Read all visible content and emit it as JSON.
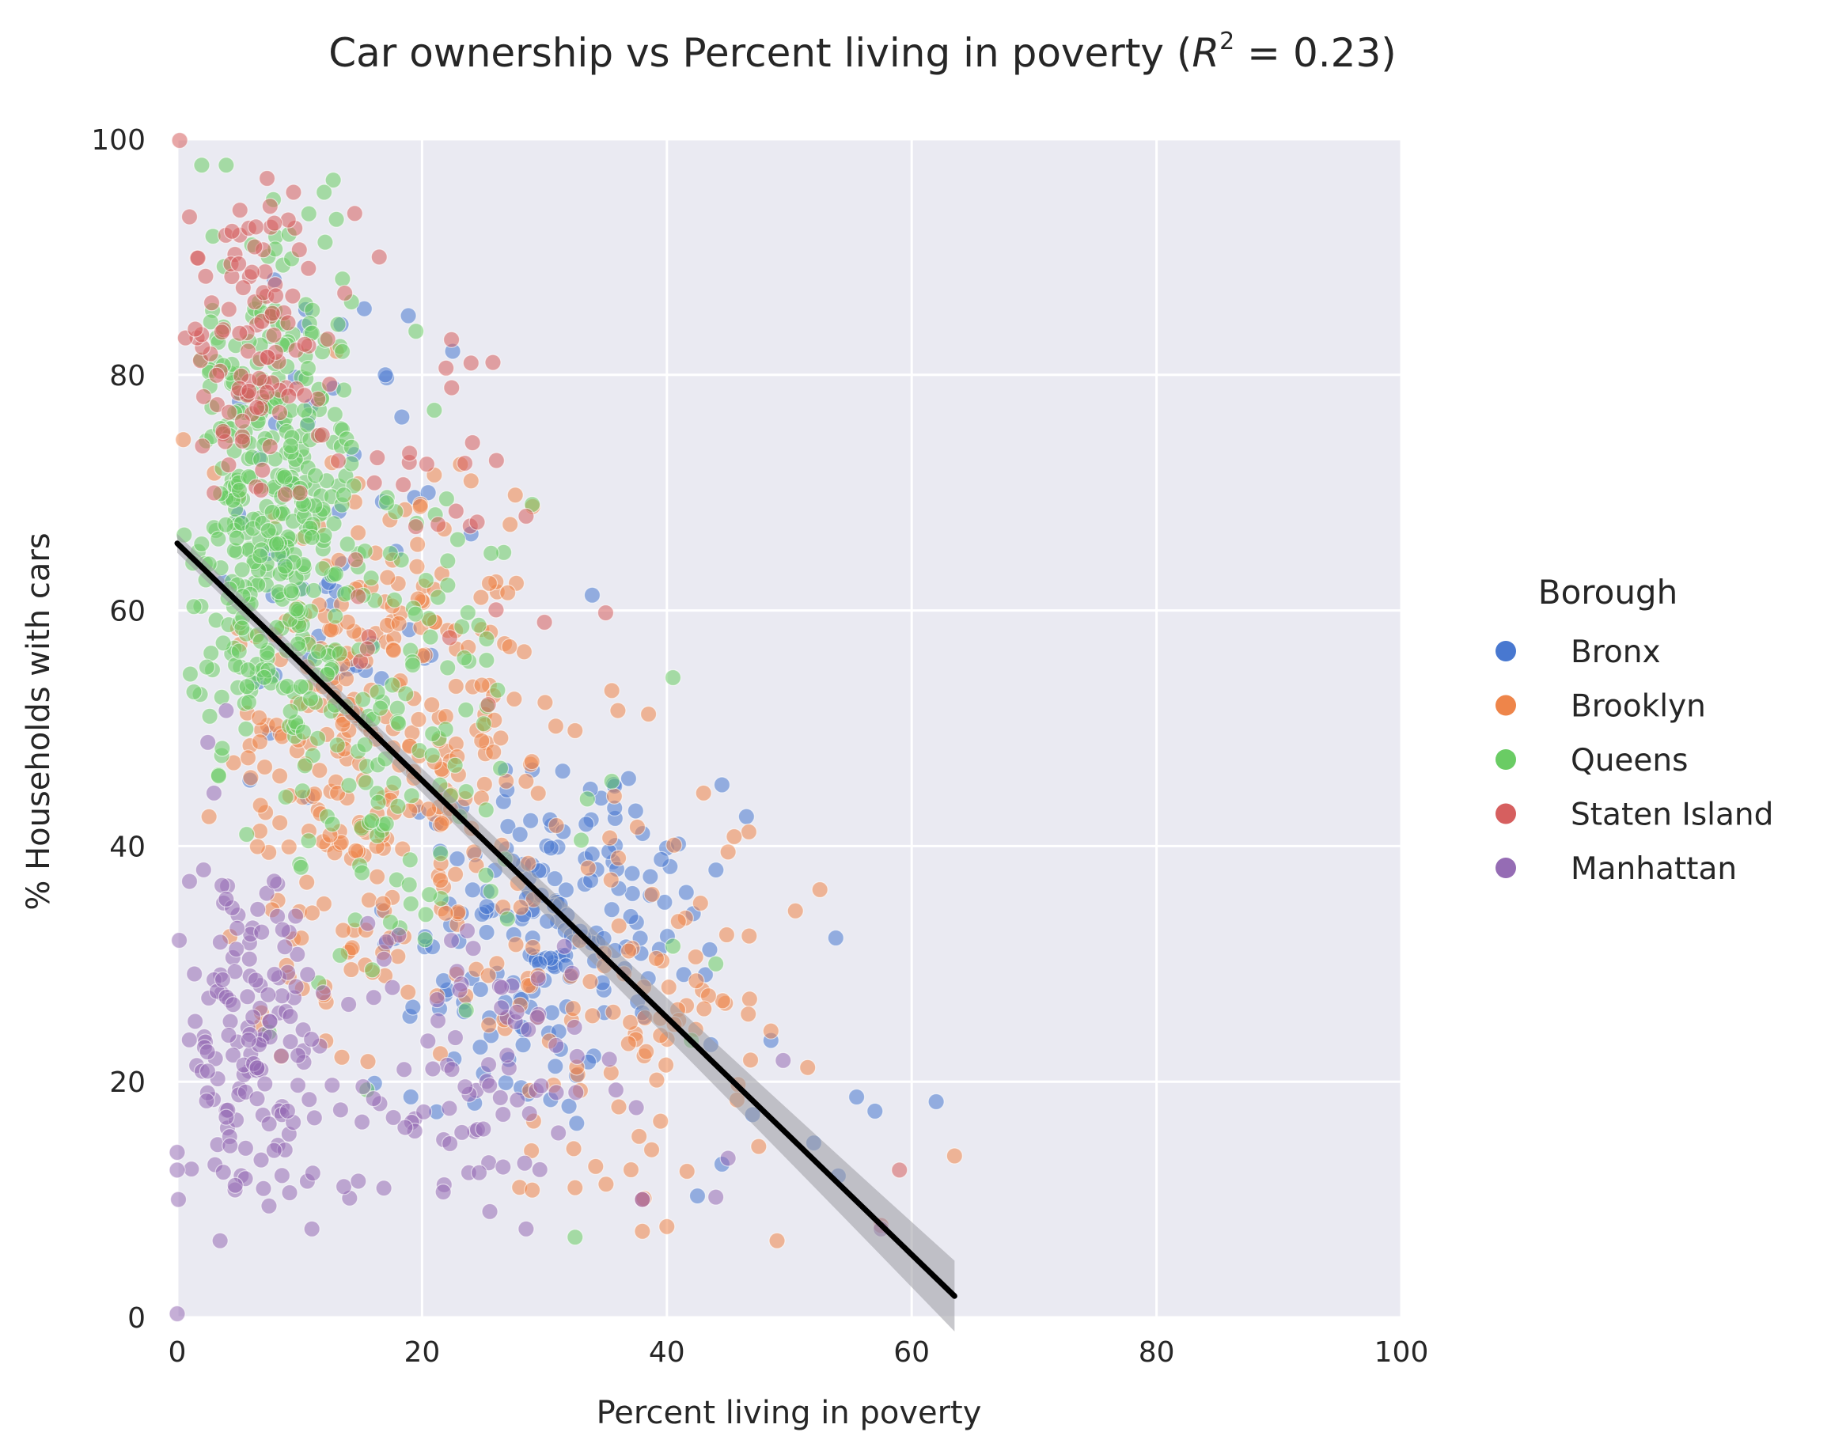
{
  "chart_data": {
    "type": "scatter",
    "title_main": "Car ownership vs Percent living in poverty (",
    "title_r": "R",
    "title_sup": "2",
    "title_rest": " = 0.23)",
    "xlabel": "Percent living in poverty",
    "ylabel": "% Households with cars",
    "xlim": [
      0,
      100
    ],
    "ylim": [
      0,
      100
    ],
    "xticks": [
      "0",
      "20",
      "40",
      "60",
      "80",
      "100"
    ],
    "yticks": [
      "0",
      "20",
      "40",
      "60",
      "80",
      "100"
    ],
    "grid": true,
    "background": "#eaeaf2",
    "legend": {
      "title": "Borough",
      "placement": "right",
      "items": [
        {
          "label": "Bronx",
          "color": "#4878d0"
        },
        {
          "label": "Brooklyn",
          "color": "#ee854a"
        },
        {
          "label": "Queens",
          "color": "#6acc64"
        },
        {
          "label": "Staten Island",
          "color": "#d65f5f"
        },
        {
          "label": "Manhattan",
          "color": "#956cb4"
        }
      ]
    },
    "regression": {
      "x_start": 0,
      "y_start": 65.7,
      "x_end": 63.5,
      "y_end": 1.8,
      "ci_halfwidth_start": 0.8,
      "ci_halfwidth_end": 3.0,
      "color": "#000000",
      "ci_color": "#9a9aa2"
    },
    "series": [
      {
        "name": "Bronx",
        "color": "#4878d0",
        "clusters": [
          {
            "n": 190,
            "x": [
              15,
              45
            ],
            "y": [
              15,
              50
            ]
          },
          {
            "n": 50,
            "x": [
              3,
              22
            ],
            "y": [
              40,
              90
            ]
          }
        ],
        "points": [
          [
            62.0,
            18.3
          ],
          [
            57.0,
            17.5
          ],
          [
            55.5,
            18.7
          ],
          [
            53.8,
            32.2
          ],
          [
            52.0,
            14.8
          ],
          [
            54.0,
            12.0
          ],
          [
            46.5,
            42.5
          ],
          [
            44.5,
            45.2
          ],
          [
            44.5,
            13.0
          ],
          [
            42.5,
            10.3
          ],
          [
            33.9,
            61.3
          ],
          [
            22.5,
            82.0
          ],
          [
            24.0,
            66.5
          ],
          [
            20.5,
            70.0
          ],
          [
            17.0,
            80.0
          ],
          [
            47.0,
            17.2
          ],
          [
            43.5,
            31.2
          ],
          [
            48.5,
            23.5
          ]
        ]
      },
      {
        "name": "Brooklyn",
        "color": "#ee854a",
        "clusters": [
          {
            "n": 320,
            "x": [
              2,
              32
            ],
            "y": [
              20,
              75
            ]
          },
          {
            "n": 90,
            "x": [
              25,
              50
            ],
            "y": [
              8,
              45
            ]
          }
        ],
        "points": [
          [
            63.5,
            13.7
          ],
          [
            52.5,
            36.3
          ],
          [
            50.5,
            34.5
          ],
          [
            51.5,
            21.2
          ],
          [
            49.0,
            6.5
          ],
          [
            48.5,
            24.3
          ],
          [
            47.5,
            14.5
          ],
          [
            45.0,
            39.5
          ],
          [
            45.5,
            40.8
          ],
          [
            43.0,
            44.5
          ],
          [
            40.0,
            7.7
          ],
          [
            38.0,
            7.3
          ],
          [
            38.5,
            51.2
          ],
          [
            35.5,
            53.2
          ],
          [
            36.0,
            51.5
          ],
          [
            32.5,
            49.8
          ],
          [
            32.5,
            11.0
          ],
          [
            29.0,
            10.8
          ],
          [
            27.0,
            61.5
          ],
          [
            25.5,
            62.3
          ],
          [
            0.5,
            74.5
          ],
          [
            24.0,
            71.0
          ],
          [
            13.0,
            82.0
          ],
          [
            21.0,
            71.5
          ]
        ]
      },
      {
        "name": "Queens",
        "color": "#6acc64",
        "clusters": [
          {
            "n": 380,
            "x": [
              0,
              16
            ],
            "y": [
              40,
              97
            ]
          },
          {
            "n": 120,
            "x": [
              8,
              28
            ],
            "y": [
              25,
              75
            ]
          }
        ],
        "points": [
          [
            40.5,
            54.3
          ],
          [
            32.5,
            6.8
          ],
          [
            35.5,
            45.5
          ],
          [
            33.5,
            44.0
          ],
          [
            33.0,
            40.5
          ],
          [
            29.0,
            69.0
          ],
          [
            19.5,
            83.7
          ],
          [
            21.0,
            77.0
          ],
          [
            40.5,
            31.5
          ],
          [
            42.0,
            23.5
          ],
          [
            44.0,
            30.0
          ],
          [
            7.5,
            24.2
          ],
          [
            15.5,
            19.3
          ],
          [
            4.0,
            97.8
          ],
          [
            2.0,
            97.8
          ],
          [
            12.0,
            95.5
          ],
          [
            13.0,
            93.2
          ]
        ]
      },
      {
        "name": "Staten Island",
        "color": "#d65f5f",
        "clusters": [
          {
            "n": 110,
            "x": [
              0,
              14
            ],
            "y": [
              68,
              97
            ]
          },
          {
            "n": 25,
            "x": [
              10,
              30
            ],
            "y": [
              50,
              85
            ]
          }
        ],
        "points": [
          [
            0.2,
            99.9
          ],
          [
            24.0,
            81.0
          ],
          [
            30.0,
            59.0
          ],
          [
            35.0,
            59.8
          ],
          [
            28.5,
            68.0
          ],
          [
            23.5,
            72.5
          ],
          [
            24.5,
            67.5
          ],
          [
            59.0,
            12.5
          ],
          [
            57.5,
            7.8
          ],
          [
            38.0,
            10.0
          ],
          [
            9.5,
            95.5
          ],
          [
            16.5,
            90.0
          ],
          [
            14.5,
            93.7
          ]
        ]
      },
      {
        "name": "Manhattan",
        "color": "#956cb4",
        "clusters": [
          {
            "n": 140,
            "x": [
              0,
              12
            ],
            "y": [
              8,
              40
            ]
          },
          {
            "n": 90,
            "x": [
              8,
              38
            ],
            "y": [
              6,
              35
            ]
          }
        ],
        "points": [
          [
            0.0,
            0.3
          ],
          [
            0.1,
            10.0
          ],
          [
            0.0,
            14.0
          ],
          [
            0.0,
            12.5
          ],
          [
            3.5,
            6.5
          ],
          [
            11.0,
            7.5
          ],
          [
            28.5,
            7.5
          ],
          [
            57.5,
            7.5
          ],
          [
            38.0,
            10.0
          ],
          [
            44.0,
            10.2
          ],
          [
            45.0,
            13.5
          ],
          [
            37.5,
            17.8
          ],
          [
            49.5,
            21.8
          ],
          [
            1.0,
            37.0
          ],
          [
            4.0,
            35.5
          ],
          [
            3.0,
            44.5
          ],
          [
            2.5,
            48.8
          ],
          [
            4.0,
            51.5
          ]
        ]
      }
    ]
  }
}
